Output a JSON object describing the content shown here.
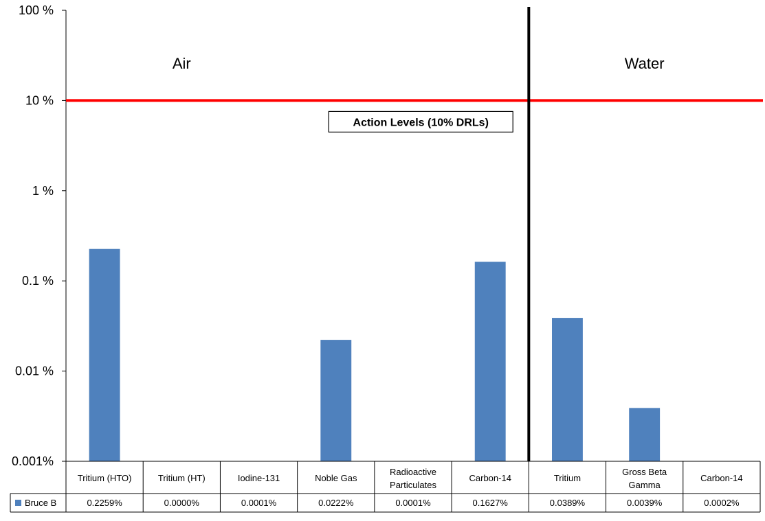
{
  "chart_data": {
    "type": "bar",
    "yscale": "log",
    "ylim": [
      0.001,
      100
    ],
    "y_ticks": [
      {
        "value": 100,
        "label": "100 %"
      },
      {
        "value": 10,
        "label": "10 %"
      },
      {
        "value": 1,
        "label": "1 %"
      },
      {
        "value": 0.1,
        "label": "0.1 %"
      },
      {
        "value": 0.01,
        "label": "0.01 %"
      },
      {
        "value": 0.001,
        "label": "0.001%"
      }
    ],
    "categories": [
      [
        "Tritium (HTO)"
      ],
      [
        "Tritium (HT)"
      ],
      [
        "Iodine-131"
      ],
      [
        "Noble Gas"
      ],
      [
        "Radioactive",
        "Particulates"
      ],
      [
        "Carbon-14"
      ],
      [
        "Tritium"
      ],
      [
        "Gross Beta",
        "Gamma"
      ],
      [
        "Carbon-14"
      ]
    ],
    "series": [
      {
        "name": "Bruce B",
        "color": "#4f81bd",
        "values": [
          0.2259,
          0.0,
          0.0001,
          0.0222,
          0.0001,
          0.1627,
          0.0389,
          0.0039,
          0.0002
        ],
        "value_labels": [
          "0.2259%",
          "0.0000%",
          "0.0001%",
          "0.0222%",
          "0.0001%",
          "0.1627%",
          "0.0389%",
          "0.0039%",
          "0.0002%"
        ]
      }
    ],
    "reference_line": {
      "value": 10,
      "color": "#ff0000",
      "label": "Action Levels (10% DRLs)"
    },
    "divider_after_category_index": 5,
    "regions": [
      {
        "label": "Air",
        "categories": [
          0,
          5
        ]
      },
      {
        "label": "Water",
        "categories": [
          6,
          8
        ]
      }
    ],
    "legend": "data table, left of values row",
    "grid": false
  }
}
